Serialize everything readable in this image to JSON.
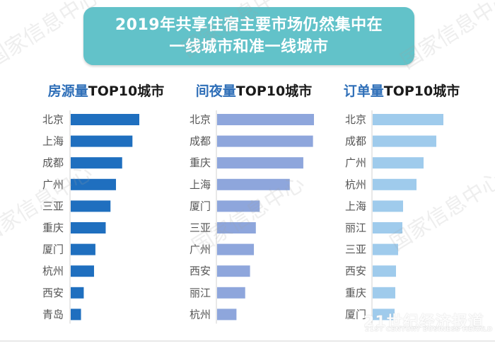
{
  "header": {
    "title_line1": "2019年共享住宿主要市场仍然集中在",
    "title_line2": "一线城市和准一线城市"
  },
  "watermark": {
    "text": "国家信息中心"
  },
  "branding": {
    "cn": "21世纪经济报道",
    "en": "21ST CENTURY BUSINESS HERALD"
  },
  "colors": {
    "banner": "#62c2c9",
    "listings": "#1f6fbf",
    "nights": "#8ea6dc",
    "orders": "#9fcbec"
  },
  "chart_data": [
    {
      "type": "bar",
      "title_highlight": "房源量",
      "title_rest": "TOP10城市",
      "categories": [
        "北京",
        "上海",
        "成都",
        "广州",
        "三亚",
        "重庆",
        "厦门",
        "杭州",
        "西安",
        "青岛"
      ],
      "values": [
        100,
        90,
        75,
        66,
        58,
        51,
        36,
        34,
        19,
        15
      ],
      "xlim": [
        0,
        100
      ]
    },
    {
      "type": "bar",
      "title_highlight": "间夜量",
      "title_rest": "TOP10城市",
      "categories": [
        "北京",
        "成都",
        "重庆",
        "上海",
        "厦门",
        "三亚",
        "广州",
        "西安",
        "丽江",
        "杭州"
      ],
      "values": [
        100,
        99,
        89,
        75,
        44,
        40,
        38,
        34,
        29,
        20
      ],
      "xlim": [
        0,
        100
      ]
    },
    {
      "type": "bar",
      "title_highlight": "订单量",
      "title_rest": "TOP10城市",
      "categories": [
        "北京",
        "成都",
        "广州",
        "杭州",
        "上海",
        "丽江",
        "三亚",
        "西安",
        "重庆",
        "厦门"
      ],
      "values": [
        100,
        90,
        72,
        62,
        43,
        42,
        36,
        33,
        32,
        31
      ],
      "xlim": [
        0,
        100
      ]
    }
  ]
}
